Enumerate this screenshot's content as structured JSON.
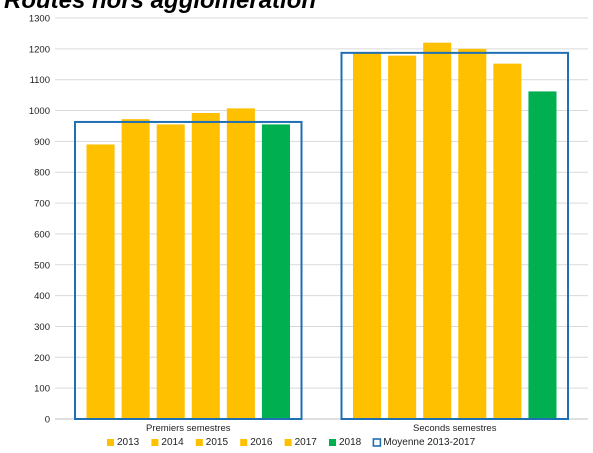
{
  "chart_data": {
    "type": "bar",
    "title": "Routes hors agglomération",
    "categories": [
      "Premiers semestres",
      "Seconds semestres"
    ],
    "series": [
      {
        "name": "2013",
        "color": "#FFC000",
        "values": [
          890,
          1185
        ]
      },
      {
        "name": "2014",
        "color": "#FFC000",
        "values": [
          972,
          1178
        ]
      },
      {
        "name": "2015",
        "color": "#FFC000",
        "values": [
          955,
          1220
        ]
      },
      {
        "name": "2016",
        "color": "#FFC000",
        "values": [
          992,
          1200
        ]
      },
      {
        "name": "2017",
        "color": "#FFC000",
        "values": [
          1007,
          1152
        ]
      },
      {
        "name": "2018",
        "color": "#00B050",
        "values": [
          955,
          1062
        ]
      }
    ],
    "average": {
      "name": "Moyenne 2013-2017",
      "color": "#1F6FB5",
      "values": [
        963,
        1187
      ]
    },
    "ylim": [
      0,
      1300
    ],
    "yticks": [
      0,
      100,
      200,
      300,
      400,
      500,
      600,
      700,
      800,
      900,
      1000,
      1100,
      1200,
      1300
    ],
    "grid": true,
    "legend_position": "bottom",
    "xlabel": "",
    "ylabel": ""
  }
}
